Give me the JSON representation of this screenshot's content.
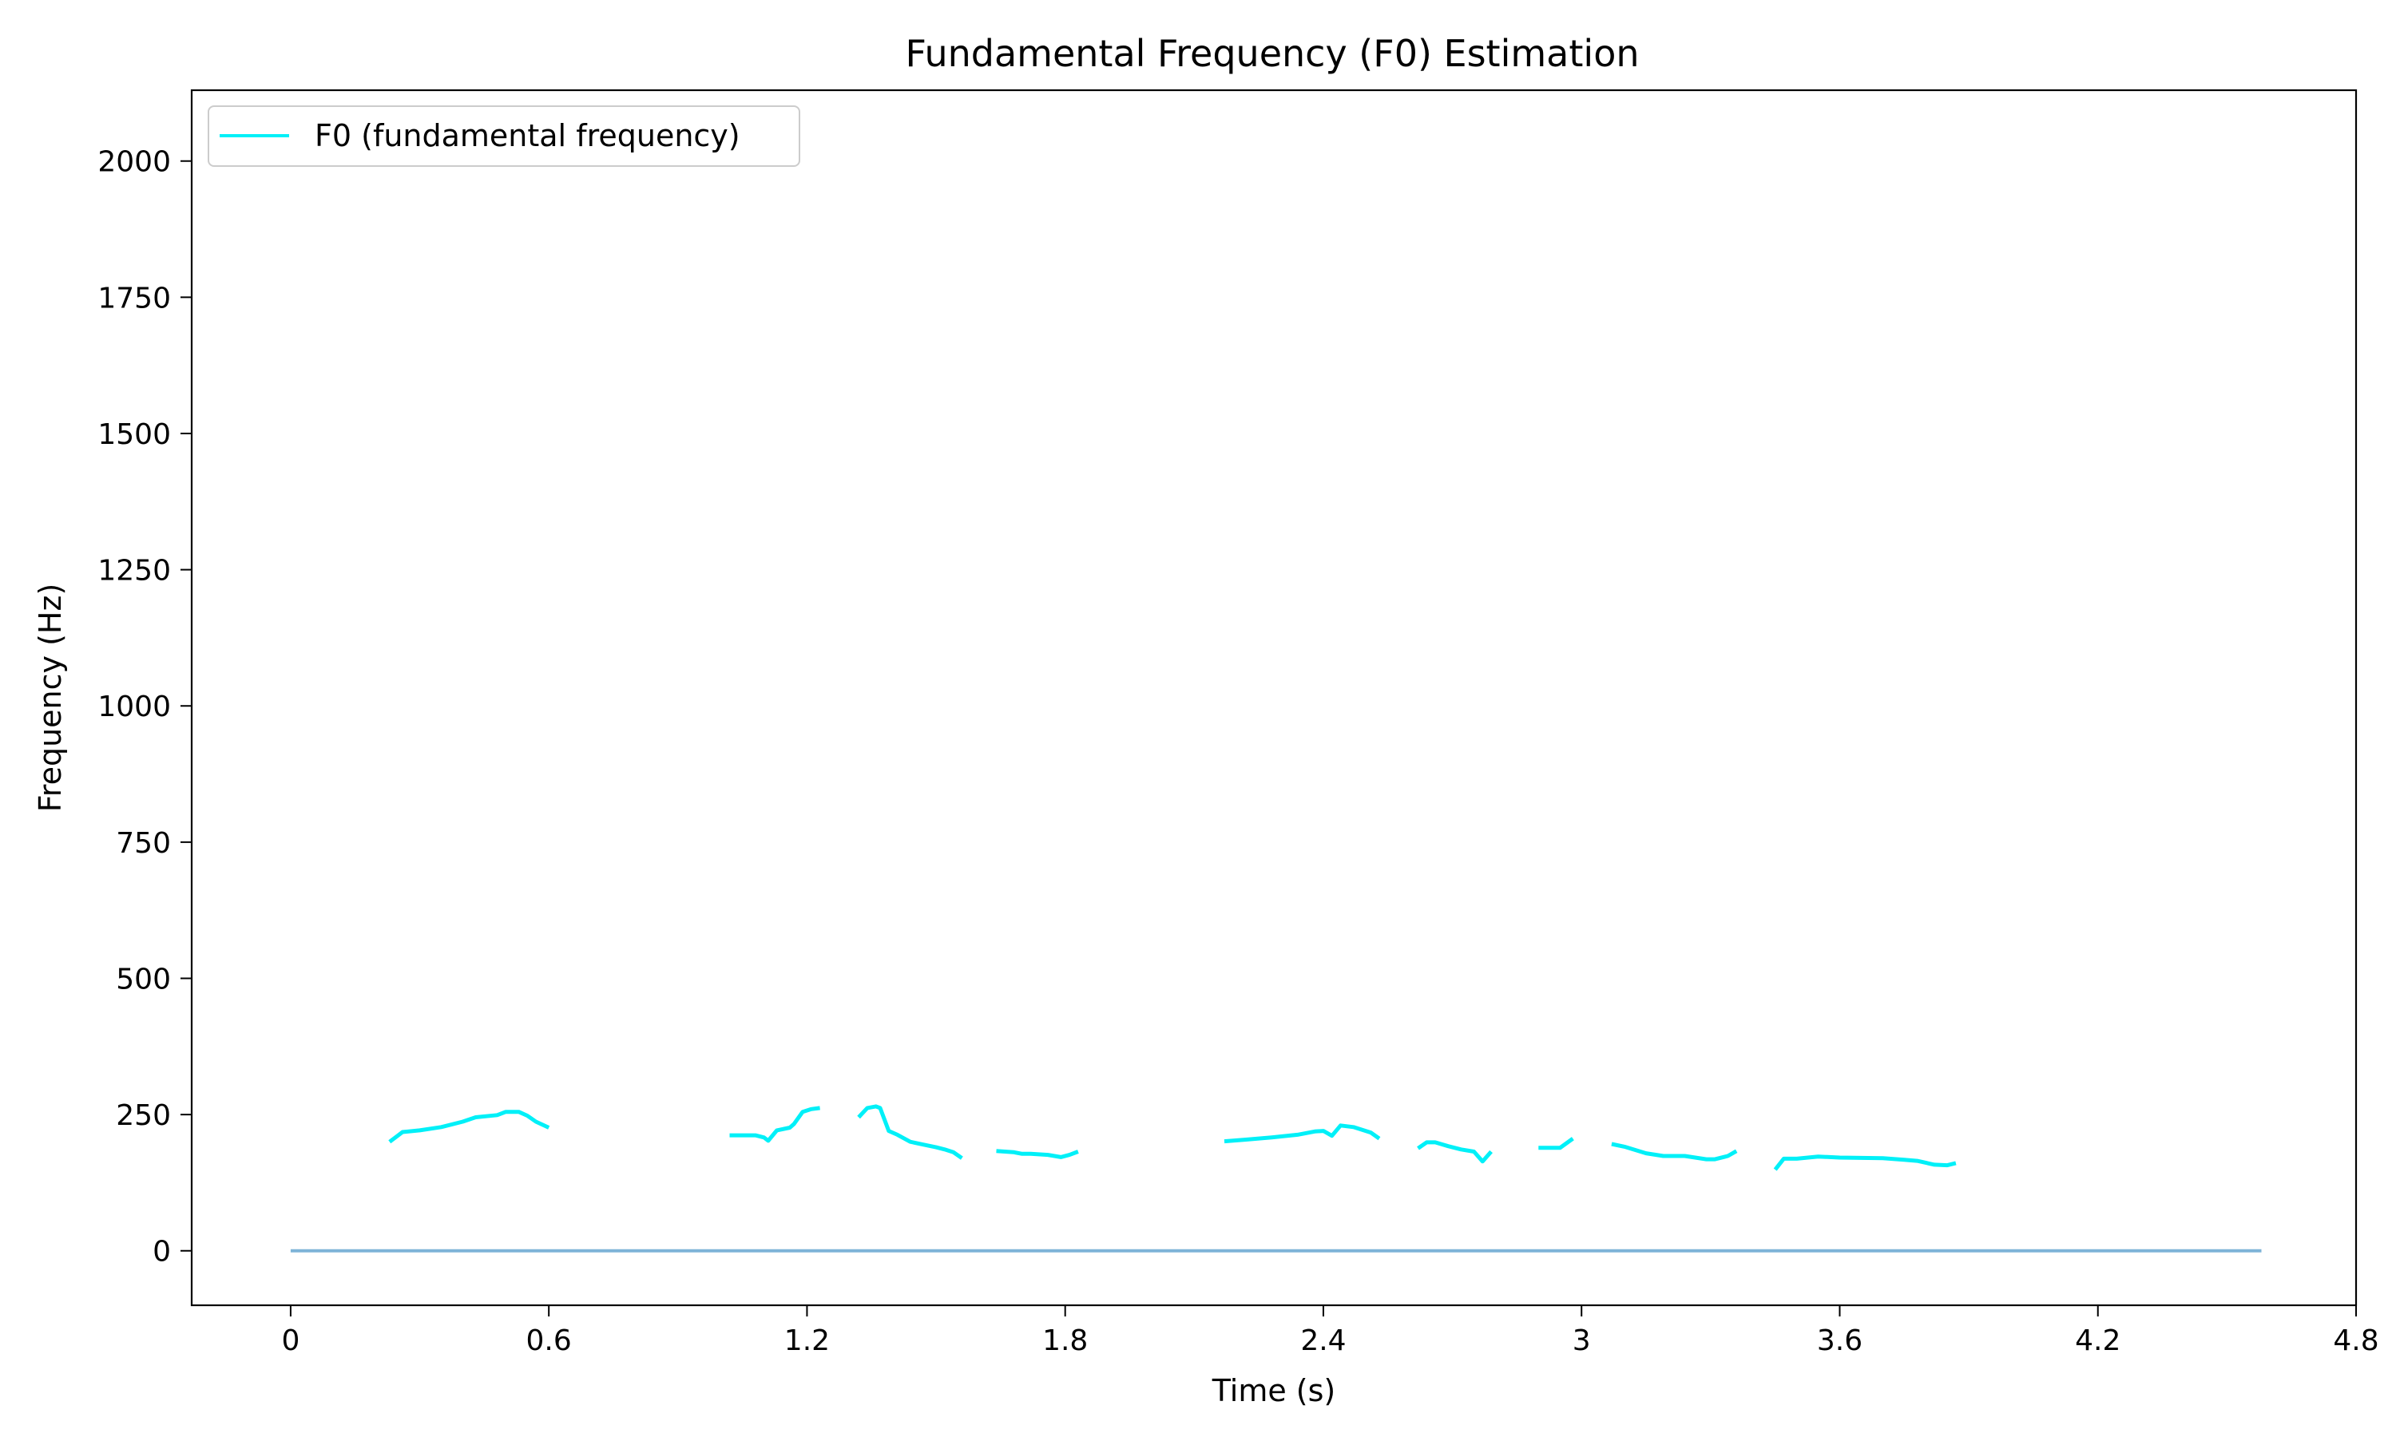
{
  "chart_data": {
    "type": "line",
    "title": "Fundamental Frequency (F0) Estimation",
    "xlabel": "Time (s)",
    "ylabel": "Frequency (Hz)",
    "xlim": [
      -0.23,
      4.8
    ],
    "ylim": [
      -100,
      2130
    ],
    "xticks": [
      0,
      0.6,
      1.2,
      1.8,
      2.4,
      3,
      3.6,
      4.2,
      4.8
    ],
    "xtick_labels": [
      "0",
      "0.6",
      "1.2",
      "1.8",
      "2.4",
      "3",
      "3.6",
      "4.2",
      "4.8"
    ],
    "yticks": [
      0,
      250,
      500,
      750,
      1000,
      1250,
      1500,
      1750,
      2000
    ],
    "ytick_labels": [
      "0",
      "250",
      "500",
      "750",
      "1000",
      "1250",
      "1500",
      "1750",
      "2000"
    ],
    "grid": false,
    "legend_position": "top-left",
    "series": [
      {
        "name": "F0 (fundamental frequency)",
        "color": "#00f0f8",
        "segments": [
          [
            [
              0.23,
              200
            ],
            [
              0.25,
              212
            ],
            [
              0.26,
              218
            ],
            [
              0.3,
              221
            ],
            [
              0.35,
              227
            ],
            [
              0.4,
              237
            ],
            [
              0.43,
              245
            ],
            [
              0.48,
              249
            ],
            [
              0.5,
              255
            ],
            [
              0.53,
              255
            ],
            [
              0.55,
              248
            ],
            [
              0.57,
              237
            ],
            [
              0.6,
              226
            ]
          ],
          [
            [
              1.02,
              212
            ],
            [
              1.08,
              212
            ],
            [
              1.1,
              208
            ],
            [
              1.11,
              202
            ],
            [
              1.13,
              221
            ],
            [
              1.16,
              226
            ],
            [
              1.17,
              233
            ],
            [
              1.19,
              255
            ],
            [
              1.21,
              260
            ],
            [
              1.23,
              262
            ]
          ],
          [
            [
              1.32,
              245
            ],
            [
              1.34,
              262
            ],
            [
              1.36,
              265
            ],
            [
              1.37,
              262
            ],
            [
              1.39,
              220
            ],
            [
              1.41,
              213
            ],
            [
              1.44,
              200
            ],
            [
              1.47,
              195
            ],
            [
              1.5,
              190
            ],
            [
              1.52,
              186
            ],
            [
              1.54,
              181
            ],
            [
              1.56,
              170
            ]
          ],
          [
            [
              1.64,
              183
            ],
            [
              1.68,
              181
            ],
            [
              1.7,
              178
            ],
            [
              1.72,
              178
            ],
            [
              1.76,
              176
            ],
            [
              1.79,
              172
            ],
            [
              1.81,
              176
            ],
            [
              1.83,
              182
            ]
          ],
          [
            [
              2.17,
              201
            ],
            [
              2.22,
              204
            ],
            [
              2.28,
              208
            ],
            [
              2.34,
              213
            ],
            [
              2.38,
              219
            ],
            [
              2.4,
              220
            ],
            [
              2.42,
              211
            ],
            [
              2.44,
              230
            ],
            [
              2.47,
              227
            ],
            [
              2.51,
              217
            ],
            [
              2.53,
              206
            ]
          ],
          [
            [
              2.62,
              188
            ],
            [
              2.64,
              199
            ],
            [
              2.66,
              199
            ],
            [
              2.69,
              192
            ],
            [
              2.72,
              186
            ],
            [
              2.75,
              182
            ],
            [
              2.77,
              164
            ],
            [
              2.79,
              182
            ]
          ],
          [
            [
              2.9,
              189
            ],
            [
              2.95,
              189
            ],
            [
              2.98,
              206
            ]
          ],
          [
            [
              3.07,
              196
            ],
            [
              3.1,
              191
            ],
            [
              3.15,
              179
            ],
            [
              3.19,
              174
            ],
            [
              3.24,
              174
            ],
            [
              3.29,
              168
            ],
            [
              3.31,
              168
            ],
            [
              3.34,
              174
            ],
            [
              3.36,
              183
            ]
          ],
          [
            [
              3.45,
              149
            ],
            [
              3.47,
              169
            ],
            [
              3.5,
              169
            ],
            [
              3.55,
              173
            ],
            [
              3.6,
              171
            ],
            [
              3.7,
              170
            ],
            [
              3.75,
              167
            ],
            [
              3.78,
              165
            ],
            [
              3.82,
              158
            ],
            [
              3.85,
              157
            ],
            [
              3.87,
              161
            ]
          ]
        ]
      },
      {
        "name": "",
        "color": "#7eb3d8",
        "segments": [
          [
            [
              0,
              0
            ],
            [
              4.58,
              0
            ]
          ]
        ]
      }
    ]
  }
}
